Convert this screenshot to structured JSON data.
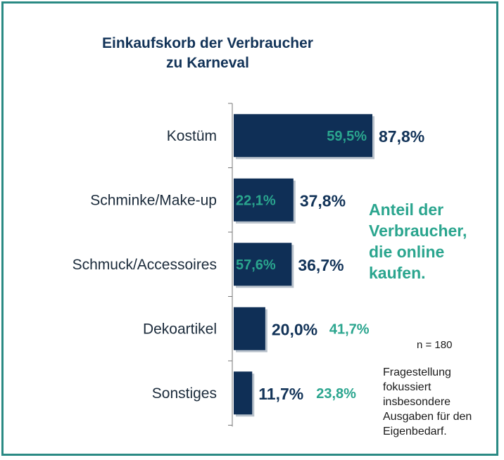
{
  "chart_data": {
    "type": "bar",
    "title": "Einkaufskorb der Verbraucher",
    "subtitle": "zu Karneval",
    "categories": [
      "Kostüm",
      "Schminke/Make-up",
      "Schmuck/Accessoires",
      "Dekoartikel",
      "Sonstiges"
    ],
    "values": [
      87.8,
      37.8,
      36.7,
      20.0,
      11.7
    ],
    "value_labels": [
      "87,8%",
      "37,8%",
      "36,7%",
      "20,0%",
      "11,7%"
    ],
    "online_share": [
      59.5,
      22.1,
      57.6,
      41.7,
      23.8
    ],
    "online_share_labels": [
      "59,5%",
      "22,1%",
      "57,6%",
      "41,7%",
      "23,8%"
    ],
    "orientation": "horizontal",
    "grid": false,
    "colors": {
      "bar": "#0f2f56",
      "online": "#2aa58e",
      "total": "#123358",
      "frame": "#2a8a84"
    }
  },
  "annotations": {
    "online_note": [
      "Anteil der",
      "Verbraucher,",
      "die online",
      "kaufen."
    ],
    "sample_size": "n = 180",
    "footnote": [
      "Fragestellung",
      "fokussiert",
      "insbesondere",
      "Ausgaben für den",
      "Eigenbedarf."
    ]
  }
}
